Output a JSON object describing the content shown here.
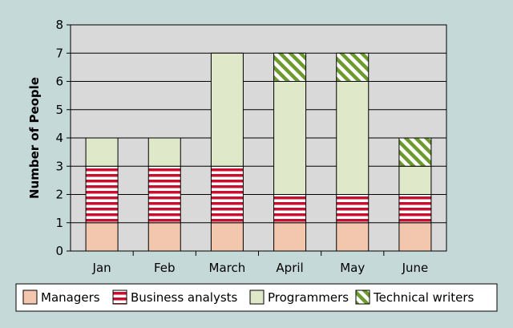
{
  "chart_data": {
    "type": "bar",
    "stacked": true,
    "categories": [
      "Jan",
      "Feb",
      "March",
      "April",
      "May",
      "June"
    ],
    "ylabel": "Number of People",
    "xlabel": "",
    "ylim": [
      0,
      8
    ],
    "yticks": [
      0,
      1,
      2,
      3,
      4,
      5,
      6,
      7,
      8
    ],
    "grid": true,
    "legend_position": "bottom",
    "series": [
      {
        "name": "Managers",
        "values": [
          1,
          1,
          1,
          1,
          1,
          1
        ],
        "color": "#f2c7ad",
        "pattern": "solid"
      },
      {
        "name": "Business analysts",
        "values": [
          2,
          2,
          2,
          1,
          1,
          1
        ],
        "color": "#c8102e",
        "pattern": "horizontal-stripes"
      },
      {
        "name": "Programmers",
        "values": [
          1,
          1,
          4,
          4,
          4,
          1
        ],
        "color": "#dfe8c8",
        "pattern": "solid"
      },
      {
        "name": "Technical writers",
        "values": [
          0,
          0,
          0,
          1,
          1,
          1
        ],
        "color": "#6d9a2e",
        "pattern": "diagonal-stripes"
      }
    ],
    "colors": {
      "plot_background": "#d9d9d9",
      "page_background": "#c6d9d9",
      "gridline": "#000000"
    }
  }
}
